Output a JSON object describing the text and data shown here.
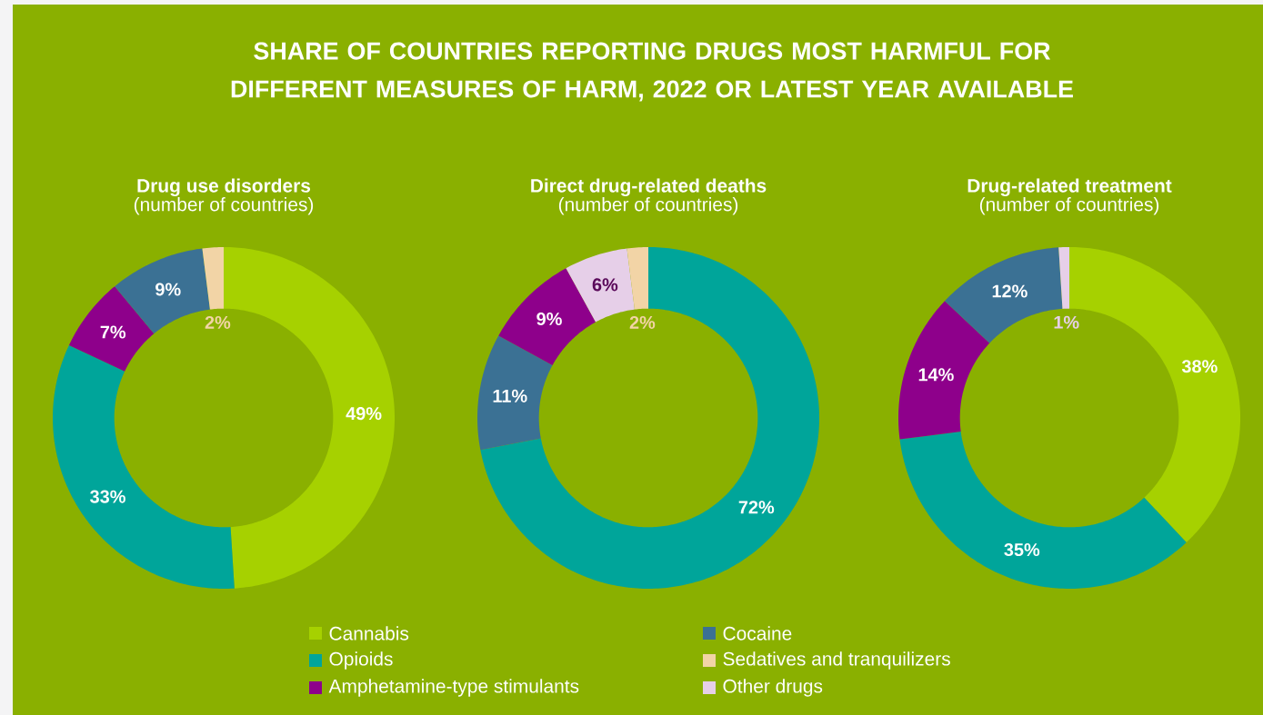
{
  "chart_data": [
    {
      "type": "donut",
      "title": "Drug use disorders",
      "subtitle": "(number of countries)",
      "annotations": [
        "SHARE OF COUNTRIES REPORTING DRUGS MOST HARMFUL FOR DIFFERENT MEASURES OF HARM, 2022 OR LATEST YEAR AVAILABLE"
      ],
      "categories": [
        "Cannabis",
        "Opioids",
        "Amphetamine-type stimulants",
        "Cocaine",
        "Sedatives and tranquilizers",
        "Other drugs"
      ],
      "values": [
        49,
        33,
        7,
        9,
        2,
        0
      ],
      "value_labels": [
        "49%",
        "33%",
        "7%",
        "9%",
        "2%",
        null
      ],
      "colors": [
        "#a6d100",
        "#00a59a",
        "#8e008b",
        "#3b7194",
        "#f2d4a6",
        "#e6cfe8"
      ],
      "legend": "bottom"
    },
    {
      "type": "donut",
      "title": "Direct drug-related deaths",
      "subtitle": "(number of countries)",
      "categories": [
        null,
        null,
        null,
        null,
        null
      ],
      "values": [
        72,
        11,
        9,
        6,
        2
      ],
      "value_labels": [
        "72%",
        "11%",
        "9%",
        "6%",
        "2%"
      ],
      "colors": [
        "#00a59a",
        "#3b7194",
        "#8e008b",
        "#e6cfe8",
        "#f2d4a6"
      ]
    },
    {
      "type": "donut",
      "title": "Drug-related treatment",
      "subtitle": "(number of countries)",
      "categories": [
        null,
        null,
        null,
        null,
        null
      ],
      "values": [
        38,
        35,
        14,
        12,
        1
      ],
      "value_labels": [
        "38%",
        "35%",
        "14%",
        "12%",
        "1%"
      ],
      "colors": [
        "#a6d100",
        "#00a59a",
        "#8e008b",
        "#3b7194",
        "#e6cfe8"
      ]
    }
  ]
}
